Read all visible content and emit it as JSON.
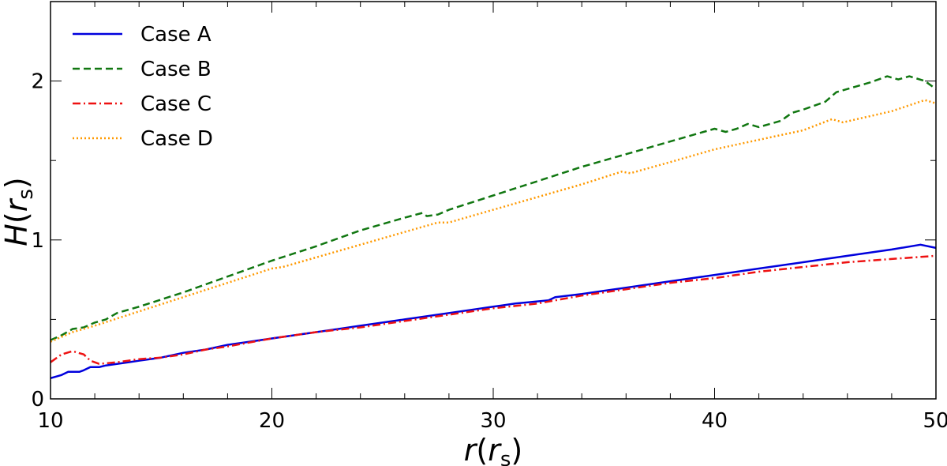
{
  "chart_data": {
    "type": "line",
    "title": "",
    "xlabel": {
      "main": "r",
      "open": "(",
      "inner": "r",
      "sub": "s",
      "close": ")"
    },
    "ylabel": {
      "main": "H",
      "open": "(",
      "inner": "r",
      "sub": "s",
      "close": ")"
    },
    "xlim": [
      10,
      50
    ],
    "ylim": [
      0,
      2.5
    ],
    "xticks": [
      10,
      20,
      30,
      40,
      50
    ],
    "yticks": [
      0,
      1,
      2
    ],
    "xtick_labels": [
      "10",
      "20",
      "30",
      "40",
      "50"
    ],
    "ytick_labels": [
      "0",
      "1",
      "2"
    ],
    "legend_position": "top-left",
    "grid": false,
    "series": [
      {
        "name": "Case A",
        "color": "#0000dd",
        "dash": "solid",
        "points": [
          [
            10,
            0.13
          ],
          [
            10.5,
            0.15
          ],
          [
            10.8,
            0.17
          ],
          [
            11.3,
            0.17
          ],
          [
            11.5,
            0.18
          ],
          [
            11.8,
            0.2
          ],
          [
            12.2,
            0.2
          ],
          [
            12.5,
            0.21
          ],
          [
            13.5,
            0.23
          ],
          [
            14,
            0.24
          ],
          [
            15,
            0.26
          ],
          [
            16,
            0.29
          ],
          [
            17,
            0.31
          ],
          [
            18,
            0.34
          ],
          [
            19,
            0.36
          ],
          [
            20,
            0.38
          ],
          [
            21,
            0.4
          ],
          [
            22,
            0.42
          ],
          [
            23,
            0.44
          ],
          [
            24,
            0.46
          ],
          [
            25,
            0.48
          ],
          [
            26,
            0.5
          ],
          [
            27,
            0.52
          ],
          [
            28,
            0.54
          ],
          [
            29,
            0.56
          ],
          [
            30,
            0.58
          ],
          [
            31,
            0.6
          ],
          [
            32.5,
            0.62
          ],
          [
            32.8,
            0.64
          ],
          [
            34,
            0.66
          ],
          [
            36,
            0.7
          ],
          [
            38,
            0.74
          ],
          [
            40,
            0.78
          ],
          [
            42,
            0.82
          ],
          [
            44,
            0.86
          ],
          [
            46,
            0.9
          ],
          [
            48,
            0.94
          ],
          [
            49.3,
            0.97
          ],
          [
            50,
            0.95
          ]
        ]
      },
      {
        "name": "Case B",
        "color": "#117711",
        "dash": "dashed",
        "points": [
          [
            10,
            0.37
          ],
          [
            10.5,
            0.4
          ],
          [
            11,
            0.44
          ],
          [
            11.5,
            0.45
          ],
          [
            12,
            0.48
          ],
          [
            12.5,
            0.5
          ],
          [
            13,
            0.54
          ],
          [
            13.5,
            0.56
          ],
          [
            14,
            0.58
          ],
          [
            16,
            0.67
          ],
          [
            18,
            0.77
          ],
          [
            20,
            0.87
          ],
          [
            22,
            0.96
          ],
          [
            24,
            1.06
          ],
          [
            26,
            1.14
          ],
          [
            26.8,
            1.17
          ],
          [
            27,
            1.15
          ],
          [
            27.5,
            1.16
          ],
          [
            28,
            1.19
          ],
          [
            30,
            1.28
          ],
          [
            32,
            1.37
          ],
          [
            34,
            1.46
          ],
          [
            36,
            1.54
          ],
          [
            38,
            1.62
          ],
          [
            40,
            1.7
          ],
          [
            40.5,
            1.68
          ],
          [
            41,
            1.7
          ],
          [
            41.5,
            1.73
          ],
          [
            42,
            1.71
          ],
          [
            43,
            1.75
          ],
          [
            43.5,
            1.8
          ],
          [
            44,
            1.82
          ],
          [
            45,
            1.87
          ],
          [
            45.5,
            1.93
          ],
          [
            46,
            1.95
          ],
          [
            47,
            1.99
          ],
          [
            47.8,
            2.03
          ],
          [
            48.3,
            2.01
          ],
          [
            48.8,
            2.03
          ],
          [
            49.5,
            2.0
          ],
          [
            50,
            1.95
          ]
        ]
      },
      {
        "name": "Case C",
        "color": "#ee1111",
        "dash": "dashdot",
        "points": [
          [
            10,
            0.23
          ],
          [
            10.5,
            0.28
          ],
          [
            11,
            0.3
          ],
          [
            11.5,
            0.28
          ],
          [
            11.8,
            0.24
          ],
          [
            12.2,
            0.22
          ],
          [
            13,
            0.23
          ],
          [
            14,
            0.25
          ],
          [
            15,
            0.26
          ],
          [
            16,
            0.28
          ],
          [
            17,
            0.31
          ],
          [
            18,
            0.33
          ],
          [
            20,
            0.38
          ],
          [
            22,
            0.42
          ],
          [
            24,
            0.45
          ],
          [
            26,
            0.49
          ],
          [
            28,
            0.53
          ],
          [
            30,
            0.57
          ],
          [
            32,
            0.6
          ],
          [
            34,
            0.65
          ],
          [
            36,
            0.69
          ],
          [
            38,
            0.73
          ],
          [
            40,
            0.76
          ],
          [
            42,
            0.8
          ],
          [
            44,
            0.83
          ],
          [
            46,
            0.86
          ],
          [
            48,
            0.88
          ],
          [
            50,
            0.9
          ]
        ]
      },
      {
        "name": "Case D",
        "color": "#ff9900",
        "dash": "dotted",
        "points": [
          [
            10,
            0.36
          ],
          [
            11,
            0.42
          ],
          [
            12,
            0.46
          ],
          [
            14,
            0.55
          ],
          [
            16,
            0.64
          ],
          [
            18,
            0.73
          ],
          [
            20,
            0.82
          ],
          [
            20.5,
            0.83
          ],
          [
            22,
            0.89
          ],
          [
            24,
            0.97
          ],
          [
            26,
            1.05
          ],
          [
            27.5,
            1.11
          ],
          [
            28,
            1.11
          ],
          [
            30,
            1.19
          ],
          [
            32,
            1.27
          ],
          [
            34,
            1.35
          ],
          [
            35.8,
            1.43
          ],
          [
            36.2,
            1.42
          ],
          [
            38,
            1.49
          ],
          [
            40,
            1.57
          ],
          [
            42,
            1.63
          ],
          [
            44,
            1.69
          ],
          [
            45.3,
            1.76
          ],
          [
            45.8,
            1.74
          ],
          [
            48,
            1.81
          ],
          [
            49.5,
            1.88
          ],
          [
            50,
            1.86
          ]
        ]
      }
    ]
  }
}
